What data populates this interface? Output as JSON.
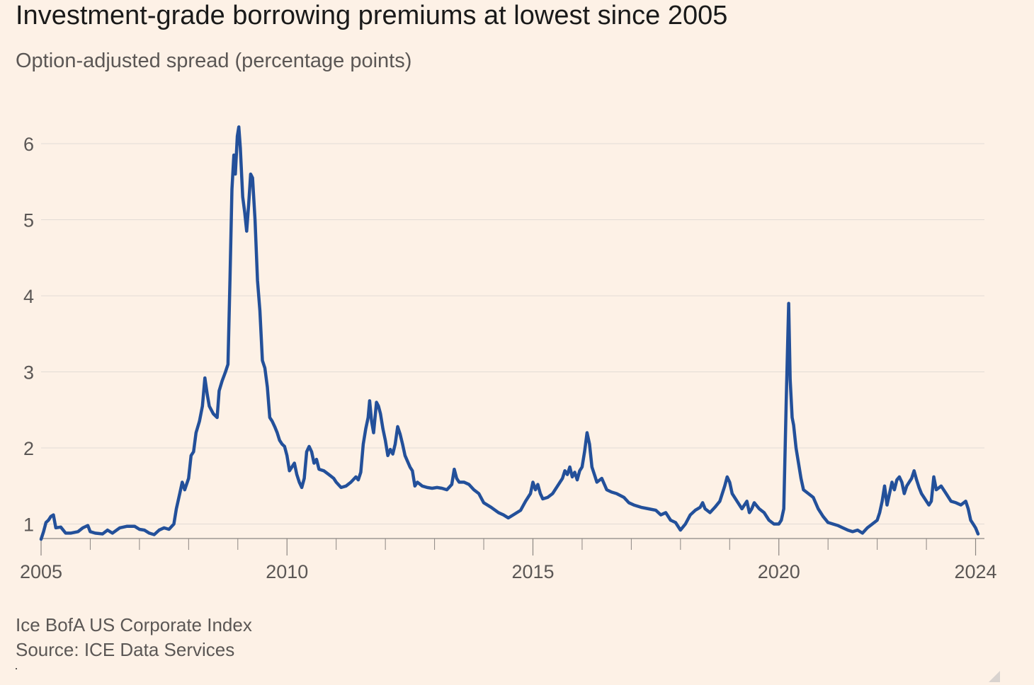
{
  "header": {
    "title": "Investment-grade borrowing premiums at lowest since 2005",
    "subtitle": "Option-adjusted spread (percentage points)"
  },
  "footer": {
    "note": "Ice BofA US Corporate Index",
    "source": "Source: ICE Data Services"
  },
  "colors": {
    "background": "#fdf1e6",
    "line": "#23509a",
    "grid": "#e2dbd5",
    "axis": "#8c8682"
  },
  "chart_data": {
    "type": "line",
    "xlim": [
      2005,
      2024.05
    ],
    "ylim": [
      0.8,
      6.4
    ],
    "yticks": [
      1,
      2,
      3,
      4,
      5,
      6
    ],
    "xticks": [
      2005,
      2010,
      2015,
      2020,
      2024
    ],
    "minor_xticks": [
      2006,
      2007,
      2008,
      2009,
      2011,
      2012,
      2013,
      2014,
      2016,
      2017,
      2018,
      2019,
      2021,
      2022,
      2023
    ],
    "grid": true,
    "series": [
      {
        "points": [
          [
            2005.0,
            0.8
          ],
          [
            2005.05,
            0.9
          ],
          [
            2005.1,
            1.02
          ],
          [
            2005.15,
            1.05
          ],
          [
            2005.2,
            1.1
          ],
          [
            2005.25,
            1.12
          ],
          [
            2005.3,
            0.95
          ],
          [
            2005.4,
            0.96
          ],
          [
            2005.5,
            0.88
          ],
          [
            2005.6,
            0.88
          ],
          [
            2005.75,
            0.9
          ],
          [
            2005.85,
            0.95
          ],
          [
            2005.95,
            0.98
          ],
          [
            2006.0,
            0.9
          ],
          [
            2006.1,
            0.88
          ],
          [
            2006.25,
            0.87
          ],
          [
            2006.35,
            0.92
          ],
          [
            2006.45,
            0.88
          ],
          [
            2006.6,
            0.95
          ],
          [
            2006.75,
            0.97
          ],
          [
            2006.9,
            0.97
          ],
          [
            2007.0,
            0.93
          ],
          [
            2007.1,
            0.92
          ],
          [
            2007.2,
            0.88
          ],
          [
            2007.3,
            0.86
          ],
          [
            2007.4,
            0.92
          ],
          [
            2007.5,
            0.95
          ],
          [
            2007.6,
            0.93
          ],
          [
            2007.7,
            1.0
          ],
          [
            2007.75,
            1.2
          ],
          [
            2007.82,
            1.4
          ],
          [
            2007.87,
            1.55
          ],
          [
            2007.92,
            1.45
          ],
          [
            2008.0,
            1.6
          ],
          [
            2008.05,
            1.9
          ],
          [
            2008.1,
            1.95
          ],
          [
            2008.15,
            2.2
          ],
          [
            2008.22,
            2.35
          ],
          [
            2008.28,
            2.55
          ],
          [
            2008.33,
            2.92
          ],
          [
            2008.38,
            2.7
          ],
          [
            2008.42,
            2.55
          ],
          [
            2008.5,
            2.45
          ],
          [
            2008.58,
            2.4
          ],
          [
            2008.62,
            2.75
          ],
          [
            2008.68,
            2.88
          ],
          [
            2008.75,
            3.0
          ],
          [
            2008.8,
            3.1
          ],
          [
            2008.84,
            4.2
          ],
          [
            2008.88,
            5.4
          ],
          [
            2008.92,
            5.85
          ],
          [
            2008.95,
            5.6
          ],
          [
            2008.99,
            6.1
          ],
          [
            2009.02,
            6.22
          ],
          [
            2009.05,
            5.95
          ],
          [
            2009.1,
            5.3
          ],
          [
            2009.14,
            5.1
          ],
          [
            2009.18,
            4.85
          ],
          [
            2009.22,
            5.2
          ],
          [
            2009.26,
            5.6
          ],
          [
            2009.3,
            5.55
          ],
          [
            2009.35,
            5.0
          ],
          [
            2009.4,
            4.2
          ],
          [
            2009.45,
            3.8
          ],
          [
            2009.5,
            3.15
          ],
          [
            2009.55,
            3.05
          ],
          [
            2009.6,
            2.8
          ],
          [
            2009.65,
            2.4
          ],
          [
            2009.7,
            2.35
          ],
          [
            2009.75,
            2.28
          ],
          [
            2009.8,
            2.2
          ],
          [
            2009.85,
            2.1
          ],
          [
            2009.9,
            2.05
          ],
          [
            2009.95,
            2.02
          ],
          [
            2010.0,
            1.9
          ],
          [
            2010.05,
            1.7
          ],
          [
            2010.1,
            1.75
          ],
          [
            2010.15,
            1.8
          ],
          [
            2010.2,
            1.65
          ],
          [
            2010.25,
            1.55
          ],
          [
            2010.3,
            1.48
          ],
          [
            2010.35,
            1.6
          ],
          [
            2010.4,
            1.95
          ],
          [
            2010.45,
            2.02
          ],
          [
            2010.5,
            1.95
          ],
          [
            2010.55,
            1.8
          ],
          [
            2010.6,
            1.85
          ],
          [
            2010.65,
            1.72
          ],
          [
            2010.75,
            1.7
          ],
          [
            2010.85,
            1.65
          ],
          [
            2010.95,
            1.6
          ],
          [
            2011.0,
            1.55
          ],
          [
            2011.1,
            1.48
          ],
          [
            2011.2,
            1.5
          ],
          [
            2011.3,
            1.55
          ],
          [
            2011.4,
            1.62
          ],
          [
            2011.45,
            1.58
          ],
          [
            2011.5,
            1.68
          ],
          [
            2011.55,
            2.05
          ],
          [
            2011.6,
            2.25
          ],
          [
            2011.65,
            2.4
          ],
          [
            2011.68,
            2.62
          ],
          [
            2011.72,
            2.35
          ],
          [
            2011.76,
            2.2
          ],
          [
            2011.82,
            2.6
          ],
          [
            2011.86,
            2.55
          ],
          [
            2011.9,
            2.45
          ],
          [
            2011.95,
            2.25
          ],
          [
            2012.0,
            2.1
          ],
          [
            2012.05,
            1.9
          ],
          [
            2012.1,
            1.98
          ],
          [
            2012.15,
            1.92
          ],
          [
            2012.2,
            2.05
          ],
          [
            2012.25,
            2.28
          ],
          [
            2012.3,
            2.18
          ],
          [
            2012.35,
            2.05
          ],
          [
            2012.4,
            1.9
          ],
          [
            2012.5,
            1.75
          ],
          [
            2012.55,
            1.7
          ],
          [
            2012.6,
            1.5
          ],
          [
            2012.65,
            1.55
          ],
          [
            2012.75,
            1.5
          ],
          [
            2012.85,
            1.48
          ],
          [
            2012.95,
            1.47
          ],
          [
            2013.05,
            1.48
          ],
          [
            2013.15,
            1.47
          ],
          [
            2013.25,
            1.45
          ],
          [
            2013.35,
            1.52
          ],
          [
            2013.4,
            1.72
          ],
          [
            2013.45,
            1.6
          ],
          [
            2013.5,
            1.55
          ],
          [
            2013.6,
            1.55
          ],
          [
            2013.7,
            1.52
          ],
          [
            2013.8,
            1.45
          ],
          [
            2013.9,
            1.4
          ],
          [
            2014.0,
            1.28
          ],
          [
            2014.15,
            1.22
          ],
          [
            2014.3,
            1.15
          ],
          [
            2014.4,
            1.12
          ],
          [
            2014.5,
            1.08
          ],
          [
            2014.6,
            1.12
          ],
          [
            2014.75,
            1.18
          ],
          [
            2014.85,
            1.3
          ],
          [
            2014.95,
            1.4
          ],
          [
            2015.0,
            1.55
          ],
          [
            2015.05,
            1.45
          ],
          [
            2015.1,
            1.52
          ],
          [
            2015.15,
            1.4
          ],
          [
            2015.2,
            1.33
          ],
          [
            2015.3,
            1.35
          ],
          [
            2015.4,
            1.4
          ],
          [
            2015.5,
            1.5
          ],
          [
            2015.6,
            1.6
          ],
          [
            2015.65,
            1.7
          ],
          [
            2015.7,
            1.65
          ],
          [
            2015.75,
            1.75
          ],
          [
            2015.8,
            1.62
          ],
          [
            2015.85,
            1.68
          ],
          [
            2015.9,
            1.58
          ],
          [
            2015.95,
            1.7
          ],
          [
            2016.0,
            1.75
          ],
          [
            2016.05,
            1.95
          ],
          [
            2016.1,
            2.2
          ],
          [
            2016.15,
            2.05
          ],
          [
            2016.2,
            1.75
          ],
          [
            2016.25,
            1.65
          ],
          [
            2016.3,
            1.55
          ],
          [
            2016.4,
            1.6
          ],
          [
            2016.5,
            1.45
          ],
          [
            2016.6,
            1.42
          ],
          [
            2016.7,
            1.4
          ],
          [
            2016.85,
            1.35
          ],
          [
            2016.95,
            1.28
          ],
          [
            2017.05,
            1.25
          ],
          [
            2017.2,
            1.22
          ],
          [
            2017.35,
            1.2
          ],
          [
            2017.5,
            1.18
          ],
          [
            2017.6,
            1.12
          ],
          [
            2017.7,
            1.15
          ],
          [
            2017.8,
            1.05
          ],
          [
            2017.9,
            1.02
          ],
          [
            2018.0,
            0.92
          ],
          [
            2018.1,
            1.0
          ],
          [
            2018.2,
            1.12
          ],
          [
            2018.3,
            1.18
          ],
          [
            2018.4,
            1.22
          ],
          [
            2018.45,
            1.28
          ],
          [
            2018.5,
            1.2
          ],
          [
            2018.6,
            1.15
          ],
          [
            2018.7,
            1.22
          ],
          [
            2018.8,
            1.3
          ],
          [
            2018.9,
            1.5
          ],
          [
            2018.95,
            1.62
          ],
          [
            2019.0,
            1.55
          ],
          [
            2019.05,
            1.4
          ],
          [
            2019.15,
            1.3
          ],
          [
            2019.25,
            1.2
          ],
          [
            2019.35,
            1.3
          ],
          [
            2019.4,
            1.15
          ],
          [
            2019.45,
            1.2
          ],
          [
            2019.5,
            1.28
          ],
          [
            2019.6,
            1.2
          ],
          [
            2019.7,
            1.15
          ],
          [
            2019.8,
            1.05
          ],
          [
            2019.9,
            1.0
          ],
          [
            2020.0,
            1.0
          ],
          [
            2020.05,
            1.05
          ],
          [
            2020.1,
            1.2
          ],
          [
            2020.15,
            2.6
          ],
          [
            2020.2,
            3.9
          ],
          [
            2020.23,
            2.9
          ],
          [
            2020.27,
            2.4
          ],
          [
            2020.3,
            2.3
          ],
          [
            2020.35,
            2.0
          ],
          [
            2020.4,
            1.8
          ],
          [
            2020.45,
            1.6
          ],
          [
            2020.5,
            1.45
          ],
          [
            2020.6,
            1.4
          ],
          [
            2020.7,
            1.35
          ],
          [
            2020.8,
            1.2
          ],
          [
            2020.9,
            1.1
          ],
          [
            2021.0,
            1.02
          ],
          [
            2021.1,
            1.0
          ],
          [
            2021.2,
            0.98
          ],
          [
            2021.3,
            0.95
          ],
          [
            2021.4,
            0.92
          ],
          [
            2021.5,
            0.9
          ],
          [
            2021.6,
            0.92
          ],
          [
            2021.7,
            0.88
          ],
          [
            2021.8,
            0.95
          ],
          [
            2021.9,
            1.0
          ],
          [
            2022.0,
            1.05
          ],
          [
            2022.05,
            1.15
          ],
          [
            2022.1,
            1.3
          ],
          [
            2022.15,
            1.5
          ],
          [
            2022.2,
            1.25
          ],
          [
            2022.25,
            1.4
          ],
          [
            2022.3,
            1.55
          ],
          [
            2022.35,
            1.45
          ],
          [
            2022.4,
            1.58
          ],
          [
            2022.45,
            1.62
          ],
          [
            2022.5,
            1.55
          ],
          [
            2022.55,
            1.4
          ],
          [
            2022.6,
            1.5
          ],
          [
            2022.7,
            1.6
          ],
          [
            2022.75,
            1.7
          ],
          [
            2022.8,
            1.58
          ],
          [
            2022.85,
            1.48
          ],
          [
            2022.9,
            1.4
          ],
          [
            2022.95,
            1.35
          ],
          [
            2023.0,
            1.3
          ],
          [
            2023.05,
            1.25
          ],
          [
            2023.1,
            1.3
          ],
          [
            2023.15,
            1.62
          ],
          [
            2023.2,
            1.45
          ],
          [
            2023.3,
            1.5
          ],
          [
            2023.4,
            1.4
          ],
          [
            2023.5,
            1.3
          ],
          [
            2023.6,
            1.28
          ],
          [
            2023.7,
            1.25
          ],
          [
            2023.8,
            1.3
          ],
          [
            2023.85,
            1.2
          ],
          [
            2023.9,
            1.05
          ],
          [
            2023.95,
            1.0
          ],
          [
            2024.0,
            0.95
          ],
          [
            2024.05,
            0.87
          ]
        ]
      }
    ]
  }
}
